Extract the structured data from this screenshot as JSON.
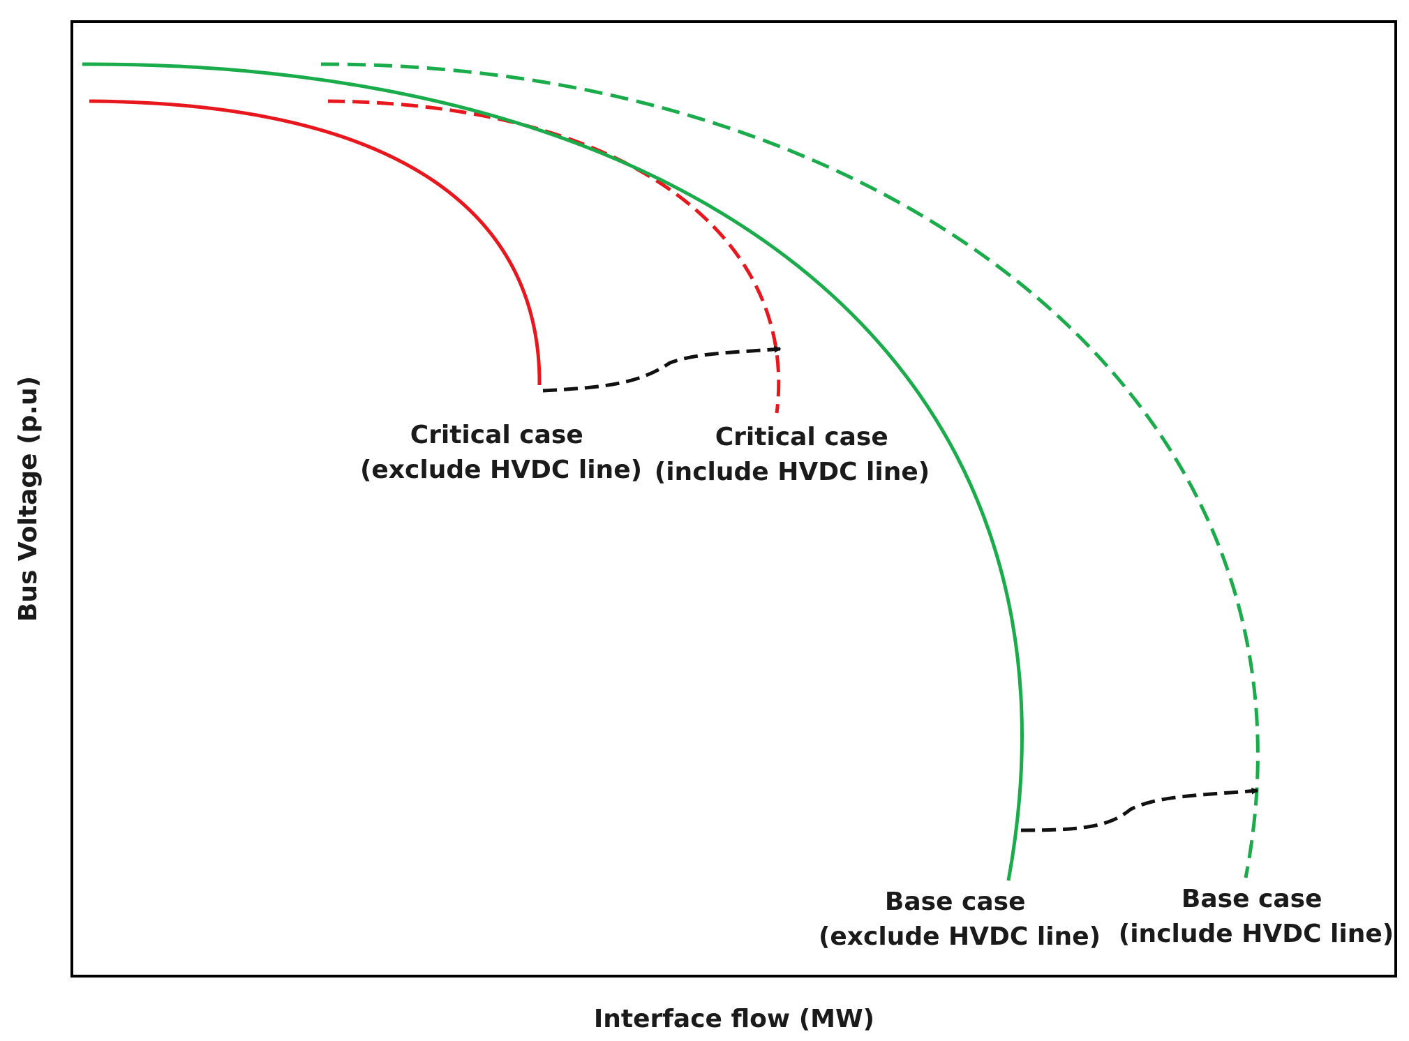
{
  "chart_data": {
    "type": "line",
    "title": "",
    "xlabel": "Interface flow (MW)",
    "ylabel": "Bus Voltage (p.u)",
    "grid": false,
    "legend": "none",
    "series": [
      {
        "label_lines": [
          "Critical case",
          "(exclude HVDC line)"
        ],
        "color": "#e8161d",
        "dash": "solid"
      },
      {
        "label_lines": [
          "Critical case",
          "(include HVDC line)"
        ],
        "color": "#e8161d",
        "dash": "dashed"
      },
      {
        "label_lines": [
          "Base case",
          "(exclude HVDC line)"
        ],
        "color": "#1aab4b",
        "dash": "solid"
      },
      {
        "label_lines": [
          "Base case",
          "(include HVDC line)"
        ],
        "color": "#1aab4b",
        "dash": "dashed"
      }
    ],
    "arrows": [
      {
        "from_series": 0,
        "to_series": 1,
        "style": "dashed",
        "color": "#111111"
      },
      {
        "from_series": 2,
        "to_series": 3,
        "style": "dashed",
        "color": "#111111"
      }
    ]
  }
}
